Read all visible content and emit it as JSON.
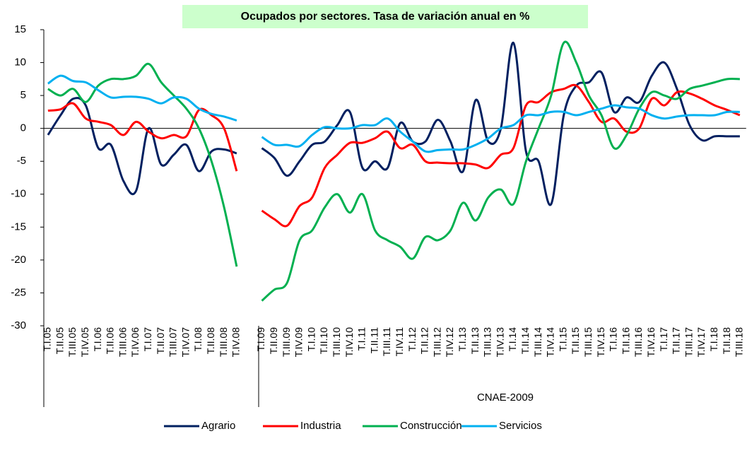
{
  "chart_data": {
    "type": "line",
    "title": "Ocupados por sectores. Tasa de variación anual en %",
    "group_label": "CNAE-2009",
    "categories": [
      "T.I.05",
      "T.II.05",
      "T.III.05",
      "T.IV.05",
      "T.I.06",
      "T.II.06",
      "T.III.06",
      "T.IV.06",
      "T.I.07",
      "T.II.07",
      "T.III.07",
      "T.IV.07",
      "T.I.08",
      "T.II.08",
      "T.III.08",
      "T.IV.08",
      null,
      "T.I.09",
      "T.II.09",
      "T.III.09",
      "T.IV.09",
      "T.I.10",
      "T.II.10",
      "T.III.10",
      "T.IV.10",
      "T.I.11",
      "T.II.11",
      "T.III.11",
      "T.IV.11",
      "T.I.12",
      "T.II.12",
      "T.III.12",
      "T.IV.12",
      "T.I.13",
      "T.II.13",
      "T.III.13",
      "T.IV.13",
      "T.I.14",
      "T.II.14",
      "T.III.14",
      "T.IV.14",
      "T.I.15",
      "T.II.15",
      "T.III.15",
      "T.IV.15",
      "T.I.16",
      "T.II.16",
      "T.III.16",
      "T.IV.16",
      "T.I.17",
      "T.II.17",
      "T.III.17",
      "T.IV.17",
      "T.I.18",
      "T.II.18",
      "T.III.18"
    ],
    "series": [
      {
        "name": "Agrario",
        "color": "#002060",
        "values": [
          -1,
          2,
          4.5,
          3.5,
          -3,
          -2.5,
          -8,
          -9.5,
          0,
          -5.5,
          -4,
          -2.5,
          -6.5,
          -3.5,
          -3.2,
          -3.8,
          null,
          -3,
          -4.5,
          -7.2,
          -5,
          -2.5,
          -2,
          0.5,
          2.5,
          -6,
          -5,
          -6,
          0.8,
          -2,
          -2,
          1.3,
          -2,
          -6.5,
          4.3,
          -2,
          0,
          13,
          -3.5,
          -5,
          -11.5,
          2,
          6.5,
          7,
          8.5,
          2.5,
          4.7,
          4,
          8,
          10,
          6,
          0.5,
          -1.8,
          -1.2,
          -1.2,
          -1.2
        ]
      },
      {
        "name": "Industria",
        "color": "#ff0000",
        "values": [
          2.7,
          2.9,
          3.8,
          1.5,
          1,
          0.5,
          -1,
          1,
          -0.5,
          -1.5,
          -1,
          -1.2,
          2.8,
          2,
          0,
          -6.5,
          null,
          -12.5,
          -13.8,
          -14.8,
          -11.8,
          -10.5,
          -6,
          -4,
          -2.2,
          -2.2,
          -1.5,
          -0.5,
          -3,
          -2.5,
          -5,
          -5.2,
          -5.3,
          -5.3,
          -5.5,
          -6,
          -4,
          -3,
          3.5,
          4,
          5.5,
          6,
          6.5,
          4,
          1,
          1.5,
          -0.5,
          0,
          4.5,
          3.5,
          5.5,
          5.3,
          4.5,
          3.5,
          2.8,
          2
        ]
      },
      {
        "name": "Construcción",
        "color": "#00b050",
        "values": [
          6,
          5,
          6,
          4,
          6.5,
          7.5,
          7.5,
          8,
          9.8,
          7,
          5,
          3,
          0,
          -5,
          -12,
          -21,
          null,
          -26.2,
          -24.5,
          -23.5,
          -17,
          -15.5,
          -12,
          -10,
          -12.8,
          -10,
          -15.5,
          -17,
          -18,
          -19.8,
          -16.5,
          -17,
          -15.5,
          -11.3,
          -14,
          -10.5,
          -9.3,
          -11.5,
          -5,
          0,
          5,
          13,
          10,
          5,
          2,
          -3,
          -1,
          3,
          5.5,
          5,
          4.5,
          6,
          6.5,
          7,
          7.5,
          7.5
        ]
      },
      {
        "name": "Servicios",
        "color": "#00b0f0",
        "values": [
          6.8,
          8,
          7.2,
          7,
          5.8,
          4.7,
          4.8,
          4.8,
          4.5,
          3.8,
          4.7,
          4.5,
          3,
          2.2,
          1.8,
          1.2,
          null,
          -1.3,
          -2.5,
          -2.5,
          -2.7,
          -1,
          0.2,
          0,
          0,
          0.5,
          0.5,
          1.5,
          -0.5,
          -2,
          -3.5,
          -3.3,
          -3.2,
          -3.2,
          -2.5,
          -1.5,
          0,
          0.5,
          2,
          2,
          2.5,
          2.5,
          2,
          2.5,
          3,
          3.5,
          3.2,
          3,
          2,
          1.5,
          1.8,
          2,
          2,
          2,
          2.5,
          2.5
        ]
      }
    ],
    "ylim": [
      -30,
      15
    ],
    "yticks": [
      -30,
      -25,
      -20,
      -15,
      -10,
      -5,
      0,
      5,
      10,
      15
    ],
    "negative_tick_color": "#ff0000",
    "title_background": "#ccffcc",
    "grid": false,
    "legend": "bottom"
  }
}
